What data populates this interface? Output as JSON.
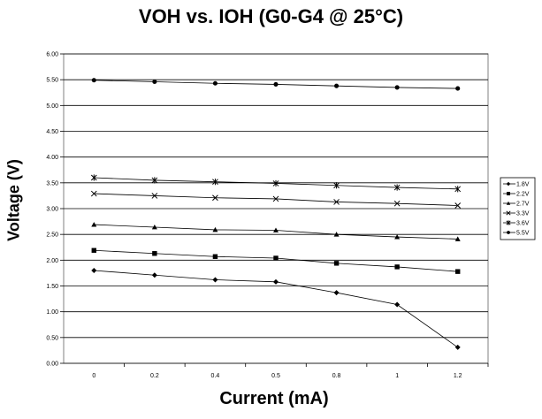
{
  "chart_data": {
    "type": "line",
    "title": "VOH vs. IOH (G0-G4 @ 25°C)",
    "xlabel": "Current (mA)",
    "ylabel": "Voltage (V)",
    "categories": [
      "0",
      "0.2",
      "0.4",
      "0.5",
      "0.8",
      "1",
      "1.2"
    ],
    "yticks": [
      "0.00",
      "0.50",
      "1.00",
      "1.50",
      "2.00",
      "2.50",
      "3.00",
      "3.50",
      "4.00",
      "4.50",
      "5.00",
      "5.50",
      "6.00"
    ],
    "ylim": [
      0,
      6
    ],
    "grid": true,
    "legend_position": "right",
    "series": [
      {
        "name": "1.8V",
        "marker": "diamond",
        "values": [
          1.8,
          1.71,
          1.62,
          1.58,
          1.37,
          1.14,
          0.31
        ]
      },
      {
        "name": "2.2V",
        "marker": "square",
        "values": [
          2.19,
          2.13,
          2.07,
          2.04,
          1.94,
          1.87,
          1.78
        ]
      },
      {
        "name": "2.7V",
        "marker": "triangle",
        "values": [
          2.69,
          2.64,
          2.59,
          2.58,
          2.5,
          2.45,
          2.41
        ]
      },
      {
        "name": "3.3V",
        "marker": "x",
        "values": [
          3.29,
          3.25,
          3.21,
          3.19,
          3.13,
          3.1,
          3.06
        ]
      },
      {
        "name": "3.6V",
        "marker": "star",
        "values": [
          3.6,
          3.55,
          3.52,
          3.49,
          3.45,
          3.41,
          3.38
        ]
      },
      {
        "name": "5.5V",
        "marker": "circle",
        "values": [
          5.49,
          5.46,
          5.43,
          5.41,
          5.38,
          5.35,
          5.33
        ]
      }
    ]
  }
}
